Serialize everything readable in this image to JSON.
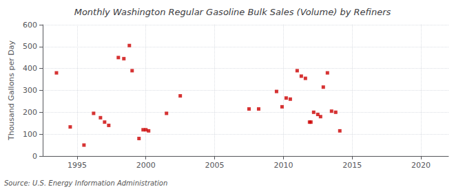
{
  "chart_data": {
    "type": "scatter",
    "title": "Monthly Washington Regular Gasoline Bulk Sales (Volume) by Refiners",
    "ylabel": "Thousand Gallons per Day",
    "annotation": "Source: U.S. Energy Information Administration",
    "color": "#cc0000",
    "marker": "square",
    "grid": true,
    "xlim": [
      1992.5,
      2022
    ],
    "ylim": [
      0,
      600
    ],
    "xticks": [
      1995,
      2000,
      2005,
      2010,
      2015,
      2020
    ],
    "yticks": [
      0,
      100,
      200,
      300,
      400,
      500,
      600
    ],
    "x": [
      1993.5,
      1994.5,
      1995.5,
      1996.2,
      1996.7,
      1997.0,
      1997.3,
      1998.0,
      1998.4,
      1998.8,
      1999.0,
      1999.5,
      1999.8,
      2000.0,
      2000.2,
      2001.5,
      2002.5,
      2007.5,
      2008.2,
      2009.5,
      2009.9,
      2010.2,
      2010.5,
      2011.0,
      2011.3,
      2011.6,
      2011.9,
      2012.0,
      2012.2,
      2012.5,
      2012.7,
      2012.9,
      2013.2,
      2013.5,
      2013.8,
      2014.1
    ],
    "values": [
      380,
      133,
      50,
      195,
      175,
      155,
      140,
      450,
      445,
      505,
      390,
      80,
      120,
      120,
      115,
      195,
      275,
      215,
      215,
      295,
      225,
      265,
      260,
      390,
      365,
      355,
      155,
      155,
      200,
      190,
      180,
      315,
      380,
      205,
      200,
      115
    ]
  }
}
